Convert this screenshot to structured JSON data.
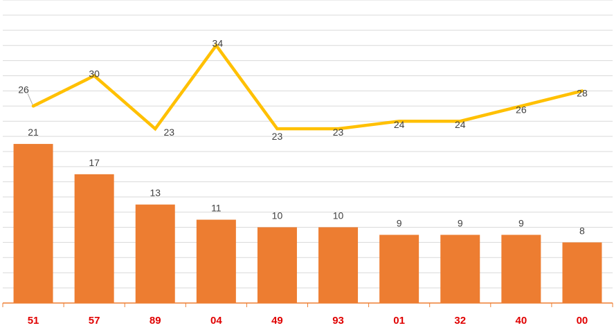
{
  "chart_data": {
    "type": "bar",
    "categories": [
      "51",
      "57",
      "89",
      "04",
      "49",
      "93",
      "01",
      "32",
      "40",
      "00"
    ],
    "series": [
      {
        "type": "bar",
        "values": [
          21,
          17,
          13,
          11,
          10,
          10,
          9,
          9,
          9,
          8
        ],
        "color": "#ED7D31"
      },
      {
        "type": "line",
        "values": [
          26,
          30,
          23,
          34,
          23,
          23,
          24,
          24,
          26,
          28
        ],
        "color": "#FFC000"
      }
    ],
    "title": "",
    "xlabel": "",
    "ylabel": "",
    "grid": true,
    "colors": {
      "category_label": "#E00000",
      "data_label": "#404040",
      "axis": "#ED7D31",
      "grid": "#D9D9D9"
    }
  }
}
